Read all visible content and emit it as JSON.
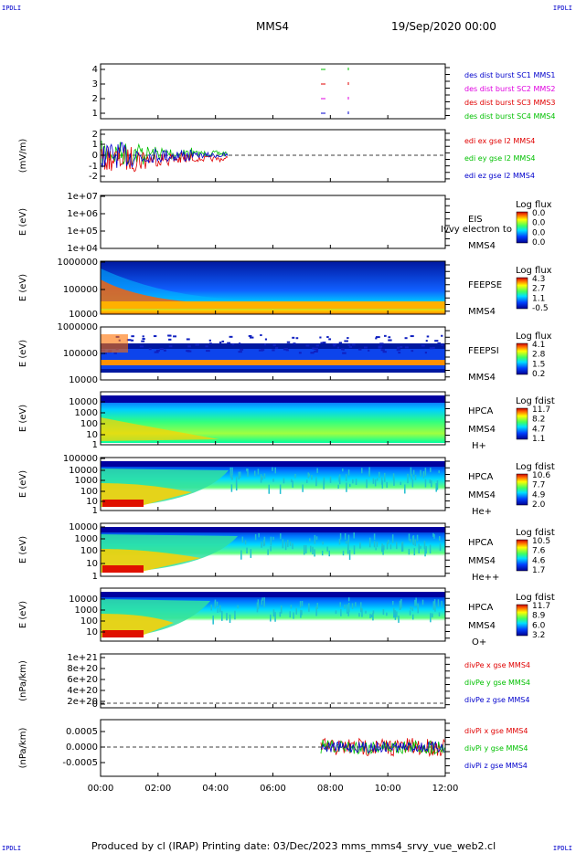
{
  "corners": {
    "tl": "IPDLI",
    "tr": "IPDLI",
    "bl": "IPDLI",
    "br": "IPDLI"
  },
  "header": {
    "mission": "MMS4",
    "date": "19/Sep/2020 00:00"
  },
  "footer": {
    "text": "Produced by cl (IRAP)   Printing date: 03/Dec/2023   mms_mms4_srvy_vue_web2.cl"
  },
  "overlay_text": "Ivvy electron to",
  "colors": {
    "red": "#e00000",
    "green": "#00c000",
    "blue": "#0000cc",
    "magenta": "#e000e0"
  },
  "chart_data": [
    {
      "type": "line",
      "ylabel": "",
      "y_ticks": [
        "4",
        "3",
        "2",
        "1"
      ],
      "ylim": [
        0.5,
        4.5
      ],
      "legend": [
        {
          "name": "des dist burst SC1 MMS1",
          "color": "#0000cc"
        },
        {
          "name": "des dist burst SC2 MMS2",
          "color": "#e000e0"
        },
        {
          "name": "des dist burst SC3 MMS3",
          "color": "#e00000"
        },
        {
          "name": "des dist burst SC4 MMS4",
          "color": "#00c000"
        }
      ]
    },
    {
      "type": "line",
      "ylabel": "(mV/m)",
      "y_ticks": [
        "2",
        "1",
        "0",
        "-1",
        "-2"
      ],
      "ylim": [
        -2.5,
        2.5
      ],
      "legend": [
        {
          "name": "edi ex gse l2 MMS4",
          "color": "#e00000"
        },
        {
          "name": "edi ey gse l2 MMS4",
          "color": "#00c000"
        },
        {
          "name": "edi ez gse l2 MMS4",
          "color": "#0000cc"
        }
      ]
    },
    {
      "type": "heatmap",
      "ylabel": "E (eV)",
      "y_ticks": [
        "1e+07",
        "1e+06",
        "1e+05",
        "1e+04"
      ],
      "instrument": [
        "EIS",
        "MMS4"
      ],
      "cbar_title": "Log flux",
      "cbar_ticks": [
        "0.0",
        "0.0",
        "0.0",
        "0.0"
      ]
    },
    {
      "type": "heatmap",
      "ylabel": "E (eV)",
      "y_ticks": [
        "1000000",
        "100000",
        "10000"
      ],
      "instrument": [
        "FEEPSE",
        "MMS4"
      ],
      "cbar_title": "Log flux",
      "cbar_ticks": [
        "4.3",
        "2.7",
        "1.1",
        "-0.5"
      ]
    },
    {
      "type": "heatmap",
      "ylabel": "E (eV)",
      "y_ticks": [
        "1000000",
        "100000",
        "10000"
      ],
      "instrument": [
        "FEEPSI",
        "MMS4"
      ],
      "cbar_title": "Log flux",
      "cbar_ticks": [
        "4.1",
        "2.8",
        "1.5",
        "0.2"
      ]
    },
    {
      "type": "heatmap",
      "ylabel": "E (eV)",
      "y_ticks": [
        "10000",
        "1000",
        "100",
        "10",
        "1"
      ],
      "instrument": [
        "HPCA",
        "MMS4",
        "H+"
      ],
      "cbar_title": "Log fdist",
      "cbar_ticks": [
        "11.7",
        "8.2",
        "4.7",
        "1.1"
      ]
    },
    {
      "type": "heatmap",
      "ylabel": "E (eV)",
      "y_ticks": [
        "100000",
        "10000",
        "1000",
        "100",
        "10",
        "1"
      ],
      "instrument": [
        "HPCA",
        "MMS4",
        "He+"
      ],
      "cbar_title": "Log fdist",
      "cbar_ticks": [
        "10.6",
        "7.7",
        "4.9",
        "2.0"
      ]
    },
    {
      "type": "heatmap",
      "ylabel": "E (eV)",
      "y_ticks": [
        "10000",
        "1000",
        "100",
        "10",
        "1"
      ],
      "instrument": [
        "HPCA",
        "MMS4",
        "He++"
      ],
      "cbar_title": "Log fdist",
      "cbar_ticks": [
        "10.5",
        "7.6",
        "4.6",
        "1.7"
      ]
    },
    {
      "type": "heatmap",
      "ylabel": "E (eV)",
      "y_ticks": [
        "10000",
        "1000",
        "100",
        "10"
      ],
      "instrument": [
        "HPCA",
        "MMS4",
        "O+"
      ],
      "cbar_title": "Log fdist",
      "cbar_ticks": [
        "11.7",
        "8.9",
        "6.0",
        "3.2"
      ]
    },
    {
      "type": "line",
      "ylabel": "(nPa/km)",
      "y_ticks": [
        "1e+21",
        "8e+20",
        "6e+20",
        "4e+20",
        "2e+20",
        "0"
      ],
      "ylim": [
        0,
        1.1e+21
      ],
      "legend": [
        {
          "name": "divPe x gse MMS4",
          "color": "#e00000"
        },
        {
          "name": "divPe y gse MMS4",
          "color": "#00c000"
        },
        {
          "name": "divPe z gse MMS4",
          "color": "#0000cc"
        }
      ]
    },
    {
      "type": "line",
      "ylabel": "(nPa/km)",
      "y_ticks": [
        "0.0005",
        "0.0000",
        "-0.0005"
      ],
      "ylim": [
        -0.0009,
        0.0009
      ],
      "legend": [
        {
          "name": "divPi x gse MMS4",
          "color": "#e00000"
        },
        {
          "name": "divPi y gse MMS4",
          "color": "#00c000"
        },
        {
          "name": "divPi z gse MMS4",
          "color": "#0000cc"
        }
      ]
    }
  ],
  "x_ticks": [
    "00:00",
    "02:00",
    "04:00",
    "06:00",
    "08:00",
    "10:00",
    "12:00"
  ]
}
